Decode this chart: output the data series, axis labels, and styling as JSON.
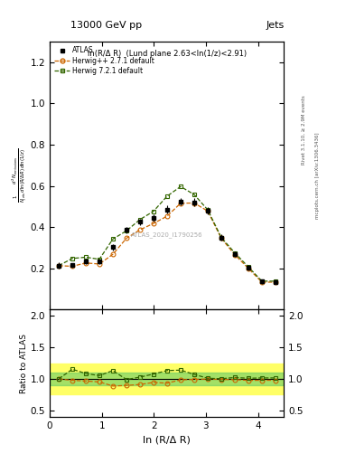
{
  "title_left": "13000 GeV pp",
  "title_right": "Jets",
  "annotation": "ln(R/Δ R)  (Lund plane 2.63<ln(1/z)<2.91)",
  "watermark": "ATLAS_2020_I1790256",
  "right_label": "Rivet 3.1.10, ≥ 2.9M events",
  "right_label2": "mcplots.cern.ch [arXiv:1306.3436]",
  "xlabel": "ln (R/Δ R)",
  "ylabel": "$\\frac{1}{N_{jets}}\\frac{d^2 N_{emissions}}{d\\ln(R/\\Delta R)\\,d\\ln(1/z)}$",
  "ylabel_ratio": "Ratio to ATLAS",
  "atlas_x": [
    0.173,
    0.434,
    0.693,
    0.953,
    1.213,
    1.474,
    1.734,
    1.994,
    2.254,
    2.514,
    2.775,
    3.035,
    3.295,
    3.555,
    3.815,
    4.075,
    4.335
  ],
  "atlas_y": [
    0.213,
    0.215,
    0.234,
    0.232,
    0.302,
    0.386,
    0.425,
    0.443,
    0.486,
    0.524,
    0.521,
    0.479,
    0.349,
    0.269,
    0.205,
    0.136,
    0.135
  ],
  "atlas_yerr_lo": [
    0.015,
    0.012,
    0.012,
    0.012,
    0.014,
    0.016,
    0.016,
    0.017,
    0.018,
    0.019,
    0.019,
    0.018,
    0.015,
    0.014,
    0.013,
    0.01,
    0.01
  ],
  "atlas_yerr_hi": [
    0.015,
    0.012,
    0.012,
    0.012,
    0.014,
    0.016,
    0.016,
    0.017,
    0.018,
    0.019,
    0.019,
    0.018,
    0.015,
    0.014,
    0.013,
    0.01,
    0.01
  ],
  "herwig_x": [
    0.173,
    0.434,
    0.693,
    0.953,
    1.213,
    1.474,
    1.734,
    1.994,
    2.254,
    2.514,
    2.775,
    3.035,
    3.295,
    3.555,
    3.815,
    4.075,
    4.335
  ],
  "herwig_y": [
    0.213,
    0.21,
    0.226,
    0.221,
    0.268,
    0.346,
    0.387,
    0.418,
    0.453,
    0.516,
    0.517,
    0.478,
    0.346,
    0.266,
    0.2,
    0.133,
    0.133
  ],
  "herwig_color": "#cc6600",
  "herwig7_x": [
    0.173,
    0.434,
    0.693,
    0.953,
    1.213,
    1.474,
    1.734,
    1.994,
    2.254,
    2.514,
    2.775,
    3.035,
    3.295,
    3.555,
    3.815,
    4.075,
    4.335
  ],
  "herwig7_y": [
    0.213,
    0.248,
    0.254,
    0.244,
    0.342,
    0.382,
    0.437,
    0.477,
    0.55,
    0.597,
    0.558,
    0.484,
    0.35,
    0.275,
    0.207,
    0.138,
    0.138
  ],
  "herwig7_color": "#336600",
  "ratio_herwig_y": [
    1.0,
    0.977,
    0.966,
    0.952,
    0.887,
    0.896,
    0.911,
    0.944,
    0.932,
    0.985,
    0.992,
    0.998,
    0.991,
    0.989,
    0.976,
    0.978,
    0.978
  ],
  "ratio_herwig7_y": [
    1.0,
    1.153,
    1.085,
    1.052,
    1.132,
    0.99,
    1.028,
    1.077,
    1.132,
    1.139,
    1.071,
    1.01,
    1.003,
    1.022,
    1.01,
    1.015,
    1.015
  ],
  "xlim": [
    0,
    4.5
  ],
  "ylim_main": [
    0.0,
    1.3
  ],
  "ylim_ratio": [
    0.4,
    2.1
  ],
  "yticks_main": [
    0.2,
    0.4,
    0.6,
    0.8,
    1.0,
    1.2
  ],
  "yticks_ratio": [
    0.5,
    1.0,
    1.5,
    2.0
  ],
  "xticks": [
    0,
    1,
    2,
    3,
    4
  ]
}
